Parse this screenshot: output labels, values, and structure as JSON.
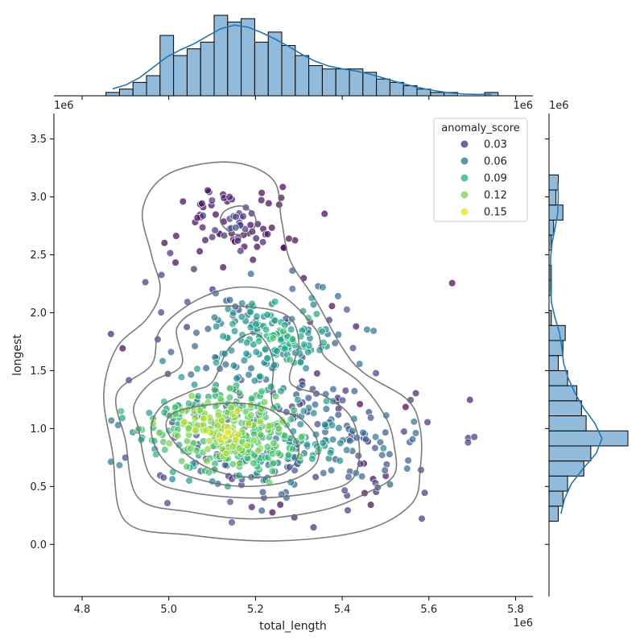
{
  "chart_data": {
    "type": "scatter",
    "subtype": "jointplot",
    "xlabel": "total_length",
    "ylabel": "longest",
    "x_offset_label": "1e6",
    "y_offset_label": "1e6",
    "top_marg_offset_label": "1e6",
    "top_marg_offset_label_right": "1e6",
    "right_marg_offset_label": "1e6",
    "xlim": [
      4.735,
      5.84
    ],
    "ylim": [
      -0.45,
      3.72
    ],
    "xticks": [
      "4.8",
      "5.0",
      "5.2",
      "5.4",
      "5.6",
      "5.8"
    ],
    "yticks": [
      "0.0",
      "0.5",
      "1.0",
      "1.5",
      "2.0",
      "2.5",
      "3.0",
      "3.5"
    ],
    "grid": false,
    "legend": {
      "title": "anomaly_score",
      "placement": "top-right",
      "entries": [
        {
          "label": "0.03",
          "color": "#472d7b"
        },
        {
          "label": "0.06",
          "color": "#2c728e"
        },
        {
          "label": "0.09",
          "color": "#28ae80"
        },
        {
          "label": "0.12",
          "color": "#7ad151"
        },
        {
          "label": "0.15",
          "color": "#e5e419"
        }
      ]
    },
    "colormap": "viridis",
    "color_range": [
      0.0,
      0.17
    ],
    "n_points": 900,
    "point_clusters": [
      {
        "center": [
          5.13,
          0.98
        ],
        "sd": [
          0.09,
          0.19
        ],
        "count": 380,
        "score_center": 0.15
      },
      {
        "center": [
          5.25,
          1.8
        ],
        "sd": [
          0.09,
          0.22
        ],
        "count": 170,
        "score_center": 0.11
      },
      {
        "center": [
          5.15,
          2.8
        ],
        "sd": [
          0.07,
          0.18
        ],
        "count": 80,
        "score_center": 0.03
      },
      {
        "center": [
          5.3,
          0.85
        ],
        "sd": [
          0.15,
          0.26
        ],
        "count": 210,
        "score_center": 0.08
      },
      {
        "center": [
          5.2,
          1.5
        ],
        "sd": [
          0.22,
          0.55
        ],
        "count": 60,
        "score_center": 0.05
      }
    ],
    "marginal_x": {
      "bin_start": 4.855,
      "bin_width": 0.0312,
      "counts": [
        1,
        2,
        4,
        6,
        18,
        12,
        14,
        16,
        24,
        22,
        23,
        16,
        19,
        15,
        12,
        9,
        8,
        8,
        8,
        7,
        5,
        4,
        3,
        2,
        1,
        1,
        0,
        0,
        1
      ],
      "kde_color": "#1f77b4",
      "bar_color": "#92bbdb"
    },
    "marginal_y": {
      "bin_start": 0.2,
      "bin_width": 0.13,
      "counts": [
        4,
        6,
        8,
        15,
        18,
        34,
        16,
        14,
        12,
        8,
        4,
        6,
        7,
        1,
        0,
        1,
        1,
        0,
        1,
        2,
        6,
        3,
        4
      ],
      "kde_color": "#1f77b4",
      "bar_color": "#92bbdb"
    },
    "kde_contours": [
      {
        "level": 1,
        "points": [
          [
            5.0,
            0.95
          ],
          [
            5.05,
            0.75
          ],
          [
            5.12,
            0.62
          ],
          [
            5.2,
            0.58
          ],
          [
            5.27,
            0.62
          ],
          [
            5.3,
            0.8
          ],
          [
            5.28,
            0.98
          ],
          [
            5.24,
            1.15
          ],
          [
            5.16,
            1.22
          ],
          [
            5.05,
            1.18
          ],
          [
            5.0,
            1.1
          ]
        ]
      },
      {
        "level": 2,
        "points": [
          [
            4.96,
            0.95
          ],
          [
            5.0,
            0.68
          ],
          [
            5.08,
            0.55
          ],
          [
            5.18,
            0.5
          ],
          [
            5.28,
            0.55
          ],
          [
            5.34,
            0.7
          ],
          [
            5.34,
            0.92
          ],
          [
            5.3,
            1.1
          ],
          [
            5.24,
            1.2
          ],
          [
            5.24,
            1.6
          ],
          [
            5.2,
            1.82
          ],
          [
            5.14,
            1.7
          ],
          [
            5.1,
            1.4
          ],
          [
            5.05,
            1.32
          ],
          [
            4.98,
            1.18
          ]
        ]
      },
      {
        "level": 3,
        "points": [
          [
            4.93,
            1.0
          ],
          [
            4.96,
            0.58
          ],
          [
            5.05,
            0.45
          ],
          [
            5.2,
            0.4
          ],
          [
            5.34,
            0.45
          ],
          [
            5.42,
            0.55
          ],
          [
            5.44,
            0.8
          ],
          [
            5.42,
            1.1
          ],
          [
            5.36,
            1.28
          ],
          [
            5.28,
            1.4
          ],
          [
            5.3,
            1.75
          ],
          [
            5.26,
            2.0
          ],
          [
            5.1,
            2.05
          ],
          [
            5.02,
            1.88
          ],
          [
            5.03,
            1.55
          ],
          [
            4.96,
            1.4
          ],
          [
            4.92,
            1.2
          ]
        ]
      },
      {
        "level": 4,
        "points": [
          [
            4.9,
            0.9
          ],
          [
            4.93,
            0.4
          ],
          [
            5.05,
            0.28
          ],
          [
            5.2,
            0.22
          ],
          [
            5.36,
            0.3
          ],
          [
            5.46,
            0.45
          ],
          [
            5.52,
            0.6
          ],
          [
            5.52,
            0.85
          ],
          [
            5.5,
            1.1
          ],
          [
            5.44,
            1.4
          ],
          [
            5.36,
            1.62
          ],
          [
            5.34,
            1.85
          ],
          [
            5.26,
            2.15
          ],
          [
            5.16,
            2.22
          ],
          [
            5.06,
            2.1
          ],
          [
            4.98,
            1.85
          ],
          [
            4.96,
            1.55
          ],
          [
            4.88,
            1.3
          ]
        ]
      },
      {
        "level": 5,
        "points": [
          [
            4.87,
            0.8
          ],
          [
            4.9,
            0.2
          ],
          [
            5.05,
            0.08
          ],
          [
            5.25,
            0.03
          ],
          [
            5.45,
            0.12
          ],
          [
            5.56,
            0.35
          ],
          [
            5.58,
            0.65
          ],
          [
            5.58,
            1.0
          ],
          [
            5.55,
            1.25
          ],
          [
            5.45,
            1.48
          ],
          [
            5.4,
            1.7
          ],
          [
            5.34,
            2.1
          ],
          [
            5.28,
            2.45
          ],
          [
            5.26,
            2.8
          ],
          [
            5.24,
            3.15
          ],
          [
            5.14,
            3.3
          ],
          [
            5.0,
            3.2
          ],
          [
            4.94,
            2.9
          ],
          [
            4.96,
            2.5
          ],
          [
            4.98,
            2.2
          ],
          [
            4.95,
            1.95
          ],
          [
            4.88,
            1.7
          ],
          [
            4.85,
            1.3
          ]
        ]
      },
      {
        "level": 6,
        "points": [
          [
            5.12,
            2.78
          ],
          [
            5.15,
            2.68
          ],
          [
            5.19,
            2.7
          ],
          [
            5.2,
            2.82
          ],
          [
            5.17,
            2.92
          ],
          [
            5.13,
            2.88
          ]
        ]
      }
    ]
  }
}
